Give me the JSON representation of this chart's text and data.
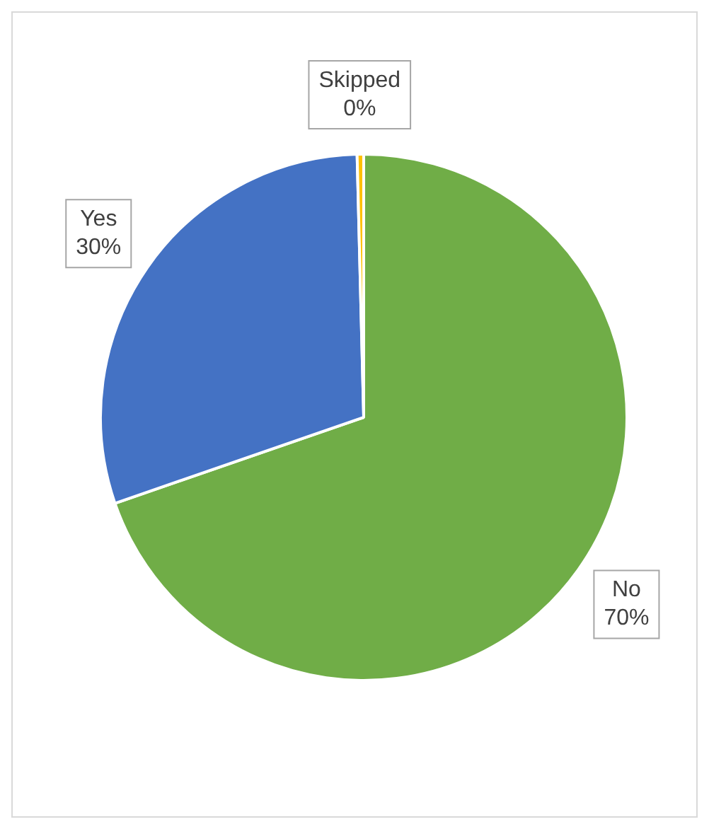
{
  "chart_data": {
    "type": "pie",
    "categories": [
      "No",
      "Yes",
      "Skipped"
    ],
    "values": [
      69.7,
      29.9,
      0.4
    ],
    "colors": [
      "#70ad47",
      "#4472c4",
      "#ffc000"
    ],
    "value_labels": [
      "70%",
      "30%",
      "0%"
    ],
    "legend": false
  }
}
